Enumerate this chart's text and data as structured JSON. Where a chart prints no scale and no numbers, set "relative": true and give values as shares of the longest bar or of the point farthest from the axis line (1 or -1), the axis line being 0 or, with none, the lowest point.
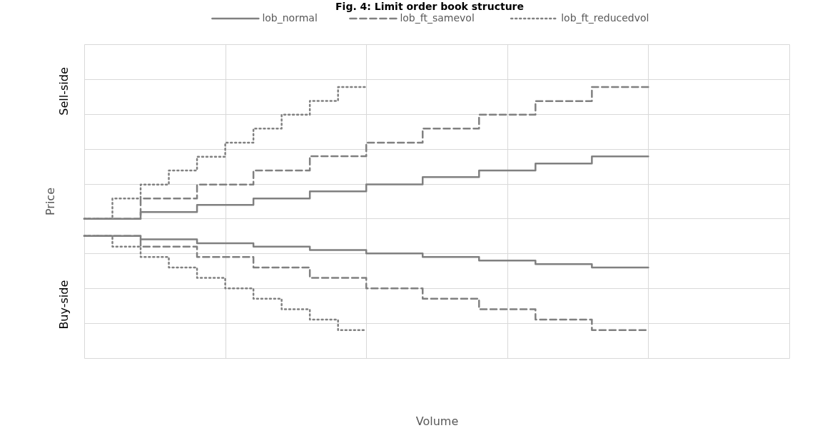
{
  "chart_data": {
    "type": "step",
    "title": "Fig. 4: Limit order book structure",
    "xlabel": "Volume",
    "ylabel": "Price",
    "relative": true,
    "grid": true,
    "legend": "top",
    "tick_labels": false,
    "marker": "none",
    "annotations": [
      "Sell-side",
      "Buy-side"
    ],
    "categories": [
      null,
      null,
      null,
      null,
      null,
      null,
      null,
      null,
      null,
      null,
      null,
      null,
      null,
      null,
      null,
      null,
      null,
      null,
      null,
      null,
      null,
      null,
      null,
      null,
      null,
      null
    ],
    "series": [
      {
        "name": "lob_normal",
        "color": "#808080",
        "line_style": "solid",
        "values": [
          0.514,
          0.514,
          0.539,
          0.539,
          0.565,
          0.565,
          0.589,
          0.589,
          0.615,
          0.615,
          0.641,
          0.641,
          0.668,
          0.668,
          0.692,
          0.692,
          0.718,
          0.718,
          0.744,
          0.744,
          0.744,
          null,
          null,
          null,
          null,
          null
        ]
      },
      {
        "color": "#808080",
        "line_style": "solid",
        "values": [
          0.451,
          0.451,
          0.438,
          0.438,
          0.424,
          0.424,
          0.411,
          0.411,
          0.399,
          0.399,
          0.386,
          0.386,
          0.373,
          0.373,
          0.36,
          0.36,
          0.347,
          0.347,
          0.334,
          0.334,
          0.334,
          null,
          null,
          null,
          null,
          null
        ]
      },
      {
        "name": "lob_ft_samevol",
        "color": "#808080",
        "line_style": "dashed",
        "values": [
          0.514,
          0.514,
          0.589,
          0.589,
          0.64,
          0.64,
          0.692,
          0.692,
          0.745,
          0.745,
          0.795,
          0.795,
          0.847,
          0.847,
          0.898,
          0.898,
          0.948,
          0.948,
          1,
          1,
          1,
          null,
          null,
          null,
          null,
          null
        ]
      },
      {
        "color": "#808080",
        "line_style": "dashed",
        "values": [
          0.451,
          0.451,
          0.411,
          0.411,
          0.373,
          0.373,
          0.334,
          0.334,
          0.296,
          0.296,
          0.257,
          0.257,
          0.219,
          0.219,
          0.18,
          0.18,
          0.142,
          0.142,
          0.103,
          0.103,
          0.103,
          null,
          null,
          null,
          null,
          null
        ]
      },
      {
        "name": "lob_ft_reducedvol",
        "color": "#808080",
        "line_style": "dotted",
        "values": [
          0.514,
          0.589,
          0.64,
          0.692,
          0.743,
          0.795,
          0.847,
          0.898,
          0.949,
          1,
          1,
          null,
          null,
          null,
          null,
          null,
          null,
          null,
          null,
          null,
          null,
          null,
          null,
          null,
          null,
          null
        ]
      },
      {
        "color": "#808080",
        "line_style": "dotted",
        "values": [
          0.451,
          0.411,
          0.373,
          0.334,
          0.296,
          0.257,
          0.219,
          0.18,
          0.142,
          0.103,
          0.103,
          null,
          null,
          null,
          null,
          null,
          null,
          null,
          null,
          null,
          null,
          null,
          null,
          null,
          null,
          null
        ]
      }
    ]
  }
}
